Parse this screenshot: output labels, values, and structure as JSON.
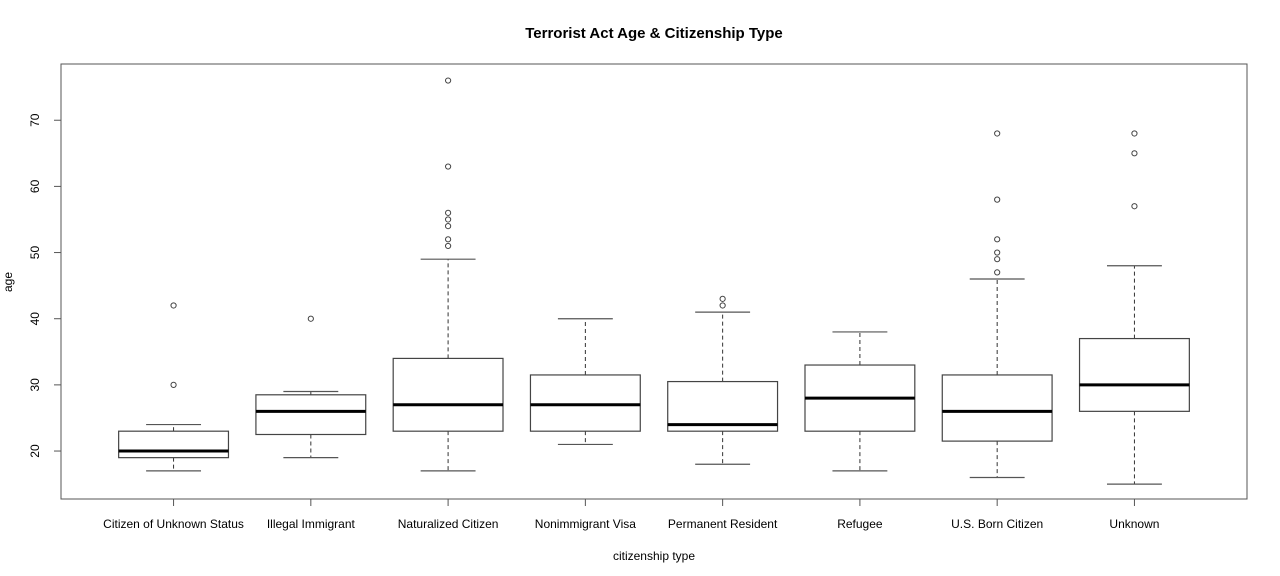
{
  "chart_data": {
    "type": "boxplot",
    "title": "Terrorist Act Age & Citizenship Type",
    "xlabel": "citizenship type",
    "ylabel": "age",
    "ylim": [
      12.75,
      78.5
    ],
    "yticks": [
      20,
      30,
      40,
      50,
      60,
      70
    ],
    "grid": false,
    "categories": [
      "Citizen of Unknown Status",
      "Illegal Immigrant",
      "Naturalized Citizen",
      "Nonimmigrant Visa",
      "Permanent Resident",
      "Refugee",
      "U.S. Born Citizen",
      "Unknown"
    ],
    "boxes": [
      {
        "whisker_low": 17,
        "q1": 19,
        "median": 20,
        "q3": 23,
        "whisker_high": 24,
        "outliers": [
          30,
          42
        ]
      },
      {
        "whisker_low": 19,
        "q1": 22.5,
        "median": 26,
        "q3": 28.5,
        "whisker_high": 29,
        "outliers": [
          40
        ]
      },
      {
        "whisker_low": 17,
        "q1": 23,
        "median": 27,
        "q3": 34,
        "whisker_high": 49,
        "outliers": [
          51,
          52,
          54,
          55,
          56,
          63,
          76
        ]
      },
      {
        "whisker_low": 21,
        "q1": 23,
        "median": 27,
        "q3": 31.5,
        "whisker_high": 40,
        "outliers": []
      },
      {
        "whisker_low": 18,
        "q1": 23,
        "median": 24,
        "q3": 30.5,
        "whisker_high": 41,
        "outliers": [
          42,
          43
        ]
      },
      {
        "whisker_low": 17,
        "q1": 23,
        "median": 28,
        "q3": 33,
        "whisker_high": 38,
        "outliers": []
      },
      {
        "whisker_low": 16,
        "q1": 21.5,
        "median": 26,
        "q3": 31.5,
        "whisker_high": 46,
        "outliers": [
          47,
          49,
          50,
          52,
          58,
          68
        ]
      },
      {
        "whisker_low": 15,
        "q1": 26,
        "median": 30,
        "q3": 37,
        "whisker_high": 48,
        "outliers": [
          57,
          65,
          68
        ]
      }
    ]
  }
}
